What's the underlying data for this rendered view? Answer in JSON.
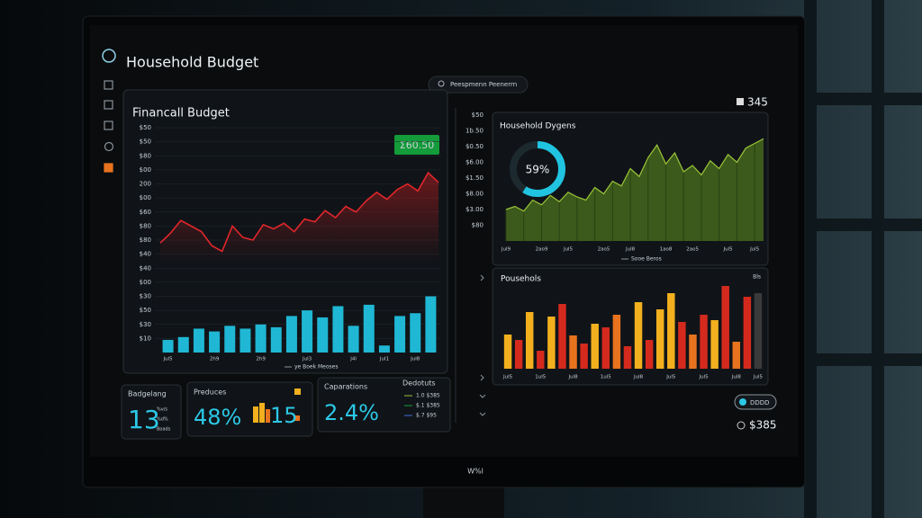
{
  "header": {
    "title": "Household Budget",
    "search": "Peespmenn Peenerrn",
    "count": "345"
  },
  "chart_data": [
    {
      "type": "line",
      "title": "Financall Budget",
      "badge": "Σ60.50",
      "note": "ye Boek Meoses",
      "color": "#e0262b",
      "values": [
        7.8,
        8.5,
        9.4,
        9.0,
        8.6,
        7.6,
        7.2,
        9.0,
        8.2,
        8.0,
        9.1,
        8.8,
        9.2,
        8.6,
        9.5,
        9.3,
        10.1,
        9.6,
        10.4,
        10.0,
        10.8,
        11.4,
        10.9,
        11.6,
        12.0,
        11.5,
        12.8,
        12.1
      ],
      "ylim": [
        0,
        16
      ],
      "yticks": [
        {
          "value": 1,
          "label": "$10"
        },
        {
          "value": 2,
          "label": "$30"
        },
        {
          "value": 3,
          "label": "$50"
        },
        {
          "value": 4,
          "label": "$30"
        },
        {
          "value": 5,
          "label": "$00"
        },
        {
          "value": 6,
          "label": "$40"
        },
        {
          "value": 7,
          "label": "$40"
        },
        {
          "value": 8,
          "label": "$80"
        },
        {
          "value": 9,
          "label": "$80"
        },
        {
          "value": 10,
          "label": "$60"
        },
        {
          "value": 11,
          "label": "$00"
        },
        {
          "value": 12,
          "label": "200"
        },
        {
          "value": 13,
          "label": "$00"
        },
        {
          "value": 14,
          "label": "$80"
        },
        {
          "value": 15,
          "label": "$50"
        },
        {
          "value": 16,
          "label": "$50"
        }
      ],
      "grid": true
    },
    {
      "type": "bar",
      "color": "#1fb7d4",
      "categories": [
        "Jul5",
        null,
        null,
        "2h9",
        null,
        null,
        "2h9",
        null,
        null,
        "Jul3",
        null,
        null,
        "J4l",
        null,
        "Jul1",
        null,
        "Jul8",
        null
      ],
      "values": [
        0.9,
        1.1,
        1.7,
        1.5,
        1.9,
        1.7,
        2.0,
        1.8,
        2.6,
        3.0,
        2.5,
        3.3,
        1.9,
        3.4,
        0.5,
        2.6,
        2.8,
        4.0
      ],
      "ylim": [
        0,
        16
      ]
    },
    {
      "type": "area",
      "title": "Household Dygens",
      "note": "Sooe Beros",
      "color": "#9cc438",
      "fill": "#3f5e1b",
      "categories": [
        "Jul9",
        null,
        null,
        null,
        "2ao9",
        null,
        null,
        "Jul5",
        null,
        null,
        null,
        "2ao5",
        null,
        null,
        "Jul8",
        null,
        null,
        null,
        "1ao8",
        null,
        null,
        "2ao5",
        null,
        null,
        null,
        "Jul5",
        null,
        null,
        "Jul5",
        null
      ],
      "values": [
        2.0,
        2.2,
        1.9,
        2.6,
        2.3,
        2.9,
        2.5,
        3.1,
        2.8,
        2.6,
        3.4,
        3.0,
        3.8,
        3.5,
        4.6,
        4.1,
        5.3,
        6.1,
        4.9,
        5.6,
        4.4,
        4.8,
        4.2,
        5.1,
        4.6,
        5.5,
        5.0,
        5.9,
        6.2,
        6.5
      ],
      "ylim": [
        0,
        8
      ],
      "yticks": [
        {
          "value": 1,
          "label": "$80"
        },
        {
          "value": 2,
          "label": "$3.00"
        },
        {
          "value": 3,
          "label": "$8.00"
        },
        {
          "value": 4,
          "label": "$1.50"
        },
        {
          "value": 5,
          "label": "$6.00"
        },
        {
          "value": 6,
          "label": "$0.50"
        },
        {
          "value": 7,
          "label": "1b.50"
        },
        {
          "value": 8,
          "label": "$50"
        }
      ]
    },
    {
      "type": "donut",
      "values": [
        59
      ],
      "value_labels": [
        "59%"
      ],
      "color": "#20c4e0"
    },
    {
      "type": "bar",
      "title": "Pousehols",
      "note": "Bls",
      "categories": [
        "Jul5",
        null,
        null,
        "1ul5",
        null,
        null,
        "Jul8",
        null,
        null,
        "1ul5",
        null,
        null,
        "Jul8",
        null,
        null,
        "Jul5",
        null,
        null,
        "Jul5",
        null,
        null,
        "Jul8",
        null,
        "Jul5"
      ],
      "values": [
        3.8,
        3.2,
        6.3,
        2.0,
        5.8,
        7.2,
        3.7,
        2.8,
        5.0,
        4.6,
        6.0,
        2.5,
        7.4,
        3.2,
        6.6,
        8.4,
        5.2,
        3.8,
        6.0,
        5.4,
        9.2,
        3.0,
        8.0,
        8.4
      ],
      "colors": [
        "#f2b01e",
        "#d42a1e",
        "#f2b01e",
        "#d42a1e",
        "#f2b01e",
        "#d42a1e",
        "#e8731e",
        "#d42a1e",
        "#f2b01e",
        "#d42a1e",
        "#e8731e",
        "#d42a1e",
        "#f2b01e",
        "#d42a1e",
        "#f2b01e",
        "#f2b01e",
        "#d42a1e",
        "#e8731e",
        "#d42a1e",
        "#f2b01e",
        "#d42a1e",
        "#e8731e",
        "#d42a1e",
        "#3a3a3a"
      ],
      "ylim": [
        0,
        10
      ]
    }
  ],
  "cards": [
    {
      "title": "Badgelang",
      "value": "13",
      "notes": [
        "%v/s",
        "%d%",
        "Boads"
      ]
    },
    {
      "title": "Preduces",
      "value": "48%",
      "extra": "15"
    },
    {
      "title": "Caparations",
      "value": "2.4%"
    }
  ],
  "deductions": {
    "title": "Dedotuts",
    "items": [
      "1.0 $385",
      "$.1 $385",
      "$.7 $95"
    ]
  },
  "footer": {
    "toggle": "DDDD",
    "total": "$385"
  },
  "brand": "W%l"
}
